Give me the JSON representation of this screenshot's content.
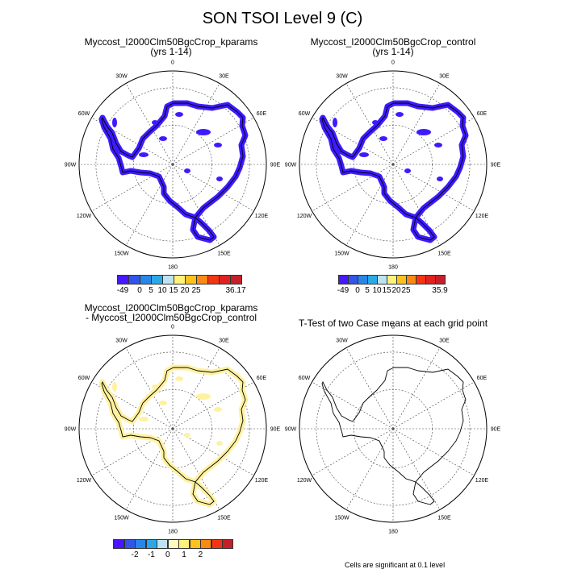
{
  "figure": {
    "title": "SON TSOI Level 9 (C)",
    "footnote": "Cells are significant at 0.1 level"
  },
  "longitude_labels": [
    "0",
    "30E",
    "60E",
    "90E",
    "120E",
    "150E",
    "180",
    "150W",
    "120W",
    "90W",
    "60W",
    "30W"
  ],
  "panels": [
    {
      "id": "kparams",
      "title_lines": [
        "Myccost_I2000Clm50BgcCrop_kparams",
        "(yrs 1-14)"
      ],
      "fill_color": "#3d1bff",
      "colorbar": {
        "colors": [
          "#4718ff",
          "#3254e8",
          "#2986e6",
          "#2aa8e8",
          "#bde3f0",
          "#fff27a",
          "#ffc11d",
          "#fb8a12",
          "#f33513",
          "#e0211f",
          "#c4202a"
        ],
        "labels": [
          "-49",
          "0",
          "5",
          "10",
          "15",
          "20",
          "25",
          "36.17"
        ]
      }
    },
    {
      "id": "control",
      "title_lines": [
        "Myccost_I2000Clm50BgcCrop_control",
        "(yrs 1-14)"
      ],
      "fill_color": "#3d1bff",
      "colorbar": {
        "colors": [
          "#4718ff",
          "#3254e8",
          "#2986e6",
          "#2aa8e8",
          "#bde3f0",
          "#fff27a",
          "#ffc11d",
          "#fb8a12",
          "#f33513",
          "#e0211f",
          "#c4202a"
        ],
        "labels": [
          "-49",
          "0",
          "5",
          "10",
          "15",
          "20",
          "25",
          "35.9"
        ]
      }
    },
    {
      "id": "difference",
      "title_lines": [
        "Myccost_I2000Clm50BgcCrop_kparams",
        "- Myccost_I2000Clm50BgcCrop_control"
      ],
      "fill_color": "#fff1a0",
      "colorbar": {
        "colors": [
          "#4718ff",
          "#3254e8",
          "#2986e6",
          "#2aa8e8",
          "#bde3f0",
          "#fff9c0",
          "#fff27a",
          "#ffc11d",
          "#fb8a12",
          "#f33513",
          "#c4202a"
        ],
        "labels": [
          "-2",
          "-1",
          "0",
          "1",
          "2"
        ]
      }
    },
    {
      "id": "ttest",
      "title_lines": [
        "T-Test of two Case means at each grid point"
      ],
      "fill_color": "none",
      "colorbar": null
    }
  ]
}
